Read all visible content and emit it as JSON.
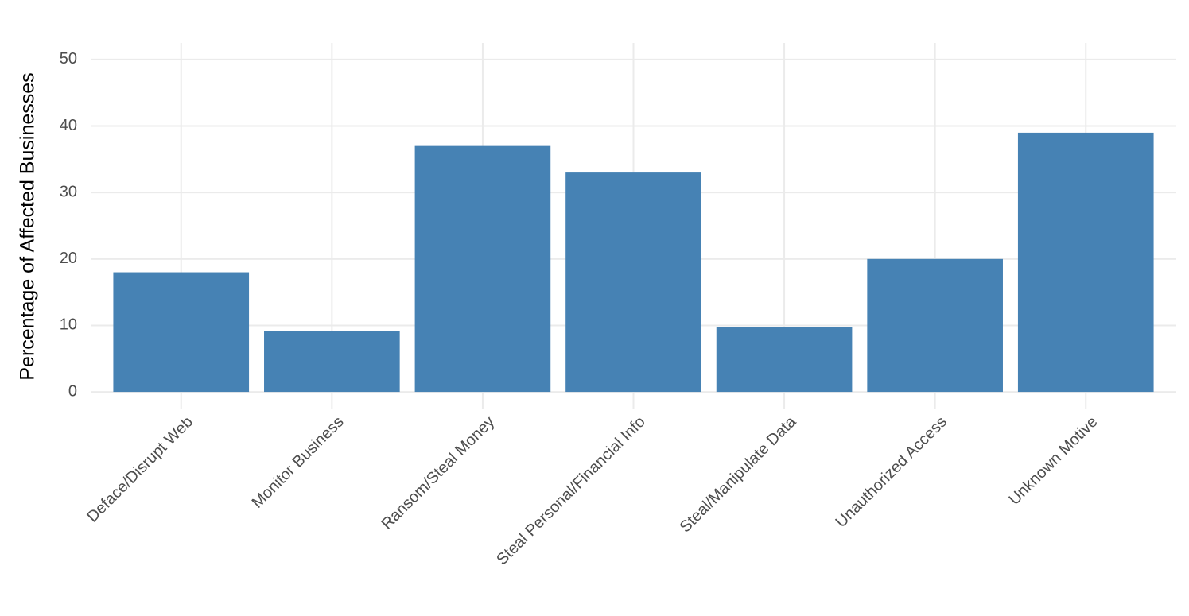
{
  "chart_data": {
    "type": "bar",
    "y_label": "Percentage of Affected Businesses",
    "categories": [
      "Deface/Disrupt Web",
      "Monitor Business",
      "Ransom/Steal Money",
      "Steal Personal/Financial Info",
      "Steal/Manipulate Data",
      "Unauthorized Access",
      "Unknown Motive"
    ],
    "values": [
      18,
      9.1,
      37,
      33,
      9.7,
      20,
      39
    ],
    "color": "#4682b4",
    "ylim": [
      -2.5,
      52.5
    ],
    "yticks": [
      0,
      10,
      20,
      30,
      40,
      50
    ],
    "grid": true
  }
}
